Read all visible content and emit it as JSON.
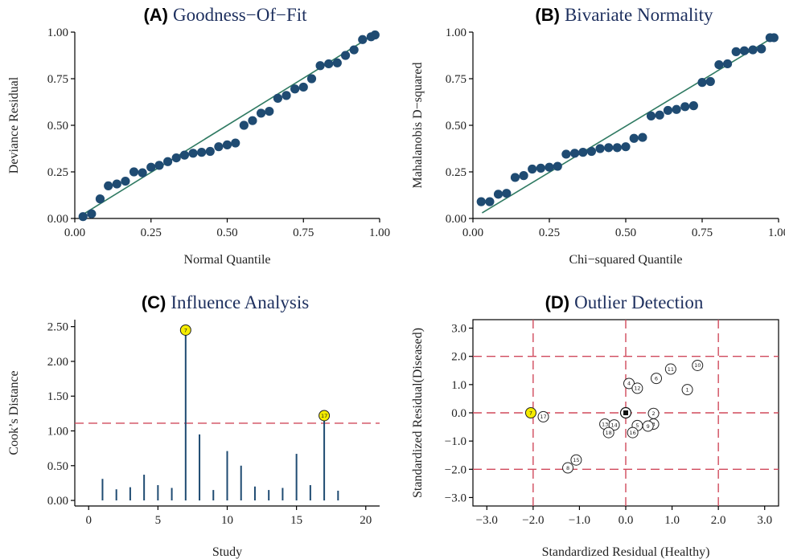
{
  "chart_data": [
    {
      "id": "A",
      "type": "scatter",
      "letter": "(A)",
      "title": "Goodness−Of−Fit",
      "xlabel": "Normal Quantile",
      "ylabel": "Deviance Residual",
      "xlim": [
        0,
        1
      ],
      "ylim": [
        0,
        1
      ],
      "xticks": [
        "0.00",
        "0.25",
        "0.50",
        "0.75",
        "1.00"
      ],
      "yticks": [
        "0.00",
        "0.25",
        "0.50",
        "0.75",
        "1.00"
      ],
      "reference_line": [
        [
          0.02,
          0.015
        ],
        [
          0.98,
          0.985
        ]
      ],
      "colors": {
        "points": "#1f4b72",
        "line": "#2f7a62"
      },
      "points": [
        [
          0.027,
          0.01
        ],
        [
          0.055,
          0.025
        ],
        [
          0.083,
          0.105
        ],
        [
          0.11,
          0.175
        ],
        [
          0.138,
          0.185
        ],
        [
          0.166,
          0.2
        ],
        [
          0.194,
          0.25
        ],
        [
          0.222,
          0.245
        ],
        [
          0.25,
          0.275
        ],
        [
          0.277,
          0.285
        ],
        [
          0.305,
          0.305
        ],
        [
          0.333,
          0.325
        ],
        [
          0.36,
          0.34
        ],
        [
          0.388,
          0.35
        ],
        [
          0.416,
          0.355
        ],
        [
          0.444,
          0.36
        ],
        [
          0.472,
          0.385
        ],
        [
          0.5,
          0.395
        ],
        [
          0.527,
          0.405
        ],
        [
          0.555,
          0.5
        ],
        [
          0.583,
          0.525
        ],
        [
          0.611,
          0.565
        ],
        [
          0.638,
          0.575
        ],
        [
          0.666,
          0.645
        ],
        [
          0.694,
          0.66
        ],
        [
          0.722,
          0.695
        ],
        [
          0.75,
          0.705
        ],
        [
          0.777,
          0.75
        ],
        [
          0.805,
          0.82
        ],
        [
          0.833,
          0.83
        ],
        [
          0.861,
          0.835
        ],
        [
          0.888,
          0.875
        ],
        [
          0.916,
          0.905
        ],
        [
          0.944,
          0.96
        ],
        [
          0.972,
          0.975
        ],
        [
          0.985,
          0.985
        ]
      ]
    },
    {
      "id": "B",
      "type": "scatter",
      "letter": "(B)",
      "title": "Bivariate Normality",
      "xlabel": "Chi−squared Quantile",
      "ylabel": "Mahalanobis D−squared",
      "xlim": [
        0,
        1
      ],
      "ylim": [
        0,
        1
      ],
      "xticks": [
        "0.00",
        "0.25",
        "0.50",
        "0.75",
        "1.00"
      ],
      "yticks": [
        "0.00",
        "0.25",
        "0.50",
        "0.75",
        "1.00"
      ],
      "reference_line": [
        [
          0.03,
          0.03
        ],
        [
          0.97,
          0.96
        ]
      ],
      "colors": {
        "points": "#1f4b72",
        "line": "#2f7a62"
      },
      "points": [
        [
          0.027,
          0.09
        ],
        [
          0.055,
          0.09
        ],
        [
          0.083,
          0.13
        ],
        [
          0.11,
          0.135
        ],
        [
          0.138,
          0.22
        ],
        [
          0.166,
          0.23
        ],
        [
          0.194,
          0.265
        ],
        [
          0.222,
          0.27
        ],
        [
          0.25,
          0.275
        ],
        [
          0.277,
          0.28
        ],
        [
          0.305,
          0.345
        ],
        [
          0.333,
          0.35
        ],
        [
          0.36,
          0.355
        ],
        [
          0.388,
          0.36
        ],
        [
          0.416,
          0.375
        ],
        [
          0.444,
          0.38
        ],
        [
          0.472,
          0.38
        ],
        [
          0.5,
          0.385
        ],
        [
          0.527,
          0.43
        ],
        [
          0.555,
          0.435
        ],
        [
          0.583,
          0.55
        ],
        [
          0.611,
          0.555
        ],
        [
          0.638,
          0.58
        ],
        [
          0.666,
          0.585
        ],
        [
          0.694,
          0.6
        ],
        [
          0.722,
          0.605
        ],
        [
          0.75,
          0.73
        ],
        [
          0.777,
          0.735
        ],
        [
          0.805,
          0.825
        ],
        [
          0.833,
          0.83
        ],
        [
          0.861,
          0.895
        ],
        [
          0.888,
          0.9
        ],
        [
          0.916,
          0.905
        ],
        [
          0.944,
          0.91
        ],
        [
          0.972,
          0.97
        ],
        [
          0.985,
          0.97
        ]
      ]
    },
    {
      "id": "C",
      "type": "bar",
      "letter": "(C)",
      "title": "Influence Analysis",
      "xlabel": "Study",
      "ylabel": "Cook’s Distance",
      "xlim": [
        -1,
        21
      ],
      "ylim": [
        -0.08,
        2.6
      ],
      "xticks": [
        "0",
        "5",
        "10",
        "15",
        "20"
      ],
      "yticks": [
        "0.00",
        "0.50",
        "1.00",
        "1.50",
        "2.00",
        "2.50"
      ],
      "threshold": 1.11,
      "colors": {
        "bars": "#1f4b72",
        "threshold": "#d04a5c",
        "highlight": "#f5ec00"
      },
      "x": [
        1,
        2,
        3,
        4,
        5,
        6,
        7,
        8,
        9,
        10,
        11,
        12,
        13,
        14,
        15,
        16,
        17,
        18
      ],
      "values": [
        0.31,
        0.16,
        0.19,
        0.37,
        0.22,
        0.18,
        2.45,
        0.95,
        0.15,
        0.71,
        0.5,
        0.2,
        0.15,
        0.18,
        0.67,
        0.22,
        1.22,
        0.14
      ],
      "highlighted": [
        {
          "x": 7,
          "label": "7"
        },
        {
          "x": 17,
          "label": "17"
        }
      ]
    },
    {
      "id": "D",
      "type": "scatter",
      "letter": "(D)",
      "title": "Outlier Detection",
      "xlabel": "Standardized Residual (Healthy)",
      "ylabel": "Standardized Residual(Diseased)",
      "xlim": [
        -3.3,
        3.3
      ],
      "ylim": [
        -3.3,
        3.3
      ],
      "xticks": [
        "−3.0",
        "−2.0",
        "−1.0",
        "0.0",
        "1.0",
        "2.0",
        "3.0"
      ],
      "yticks": [
        "−3.0",
        "−2.0",
        "−1.0",
        "0.0",
        "1.0",
        "2.0",
        "3.0"
      ],
      "threshold_x": [
        -2,
        0,
        2
      ],
      "threshold_y": [
        -2,
        0,
        2
      ],
      "colors": {
        "threshold": "#d04a5c",
        "highlight": "#f5ec00"
      },
      "points": [
        {
          "label": "1",
          "x": 1.33,
          "y": 0.82
        },
        {
          "label": "2",
          "x": 0.6,
          "y": -0.02
        },
        {
          "label": "3",
          "x": 0.6,
          "y": -0.4
        },
        {
          "label": "4",
          "x": 0.07,
          "y": 1.04
        },
        {
          "label": "5",
          "x": 0.25,
          "y": -0.45
        },
        {
          "label": "6",
          "x": 0.66,
          "y": 1.22
        },
        {
          "label": "7",
          "x": -2.05,
          "y": 0.0,
          "highlight": true
        },
        {
          "label": "8",
          "x": -1.25,
          "y": -1.95
        },
        {
          "label": "9",
          "x": 0.48,
          "y": -0.47
        },
        {
          "label": "10",
          "x": 1.55,
          "y": 1.68
        },
        {
          "label": "11",
          "x": 0.97,
          "y": 1.55
        },
        {
          "label": "12",
          "x": 0.25,
          "y": 0.87
        },
        {
          "label": "13",
          "x": -0.45,
          "y": -0.4
        },
        {
          "label": "14",
          "x": -0.25,
          "y": -0.43
        },
        {
          "label": "15",
          "x": -1.07,
          "y": -1.67
        },
        {
          "label": "16",
          "x": 0.15,
          "y": -0.7
        },
        {
          "label": "17",
          "x": -1.78,
          "y": -0.14
        },
        {
          "label": "18",
          "x": -0.37,
          "y": -0.7
        },
        {
          "label": "",
          "x": 0.0,
          "y": 0.0,
          "filled": true
        }
      ]
    }
  ]
}
